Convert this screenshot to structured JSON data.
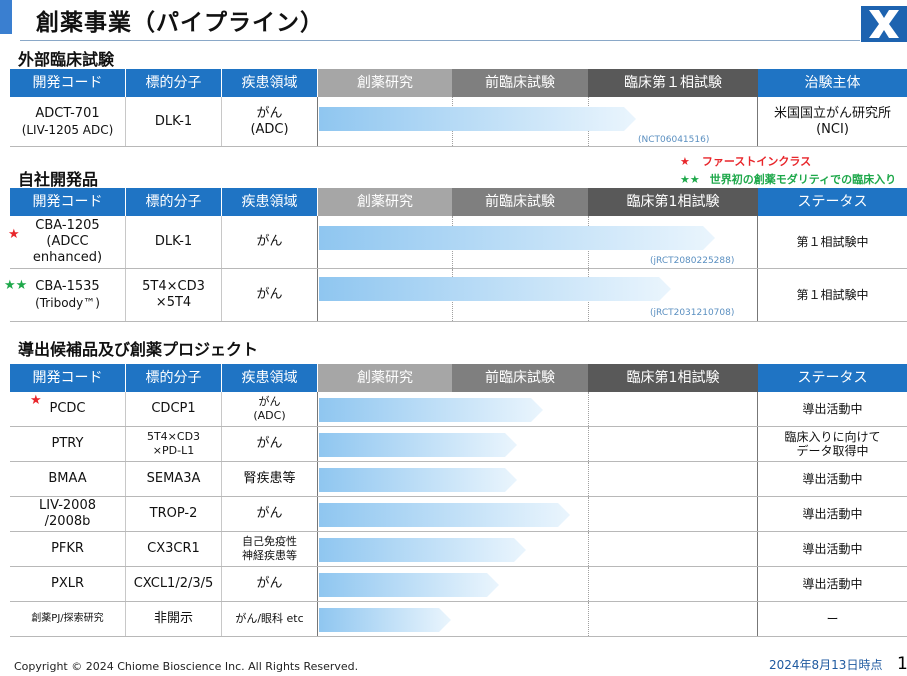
{
  "title": "創薬事業（パイプライン）",
  "headers": {
    "code": "開発コード",
    "target": "標的分子",
    "disease": "疾患領域",
    "discovery": "創薬研究",
    "preclinical": "前臨床試験",
    "phase1_a": "臨床第１相試験",
    "phase1_b": "臨床第1相試験",
    "sponsor": "治験主体",
    "status": "ステータス"
  },
  "legend": {
    "first_in_class": "ファーストインクラス",
    "first_modality": "世界初の創薬モダリティでの臨床入り"
  },
  "sections": [
    {
      "title": "外部臨床試験",
      "rows": [
        {
          "code": "ADCT-701",
          "code_sub": "(LIV-1205 ADC)",
          "target": "DLK-1",
          "disease": "がん",
          "disease_sub": "(ADC)",
          "stage_fraction": 0.72,
          "registry": "(NCT06041516)",
          "status": "米国国立がん研究所",
          "status_sub": "(NCI)"
        }
      ]
    },
    {
      "title": "自社開発品",
      "rows": [
        {
          "code": "CBA-1205",
          "code_sub": "(ADCC enhanced)",
          "target": "DLK-1",
          "disease": "がん",
          "stage_fraction": 0.9,
          "registry": "(jRCT2080225288)",
          "status": "第１相試験中",
          "star": "red"
        },
        {
          "code": "CBA-1535",
          "code_sub": "(Tribody™)",
          "target": "5T4×CD3",
          "target_sub": "×5T4",
          "disease": "がん",
          "stage_fraction": 0.8,
          "registry": "(jRCT2031210708)",
          "status": "第１相試験中",
          "star": "green"
        }
      ]
    },
    {
      "title": "導出候補品及び創薬プロジェクト",
      "rows": [
        {
          "code": "PCDC",
          "target": "CDCP1",
          "disease": "がん",
          "disease_sub": "(ADC)",
          "stage_fraction": 0.51,
          "status": "導出活動中",
          "star": "red"
        },
        {
          "code": "PTRY",
          "target": "5T4×CD3",
          "target_sub": "×PD-L1",
          "disease": "がん",
          "stage_fraction": 0.45,
          "status": "臨床入りに向けて",
          "status_sub": "データ取得中"
        },
        {
          "code": "BMAA",
          "target": "SEMA3A",
          "disease": "腎疾患等",
          "stage_fraction": 0.45,
          "status": "導出活動中"
        },
        {
          "code": "LIV-2008",
          "code_sub": "/2008b",
          "target": "TROP-2",
          "disease": "がん",
          "stage_fraction": 0.57,
          "status": "導出活動中"
        },
        {
          "code": "PFKR",
          "target": "CX3CR1",
          "disease": "自己免疫性",
          "disease_sub": "神経疾患等",
          "stage_fraction": 0.47,
          "status": "導出活動中"
        },
        {
          "code": "PXLR",
          "target": "CXCL1/2/3/5",
          "disease": "がん",
          "stage_fraction": 0.41,
          "status": "導出活動中"
        },
        {
          "code": "創薬PJ/探索研究",
          "target": "非開示",
          "disease": "がん/眼科 etc",
          "stage_fraction": 0.3,
          "status": "ー"
        }
      ]
    }
  ],
  "footer": {
    "copyright": "Copyright © 2024 Chiome Bioscience Inc. All Rights Reserved.",
    "date": "2024年8月13日時点",
    "page": "1"
  }
}
